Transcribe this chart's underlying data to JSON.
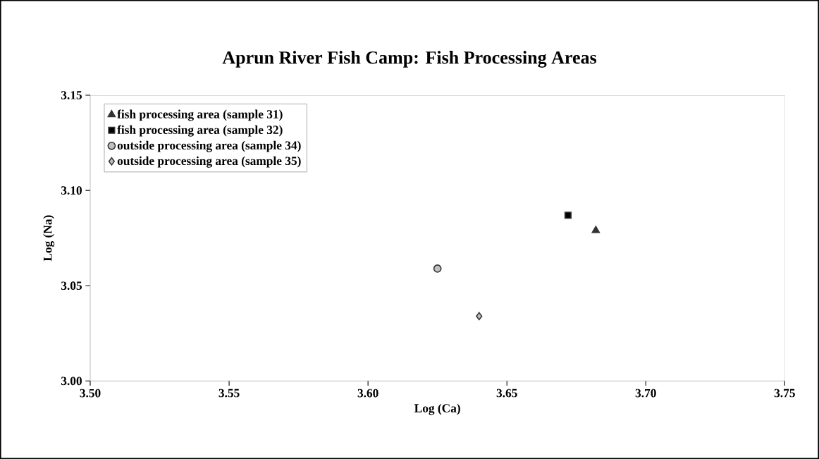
{
  "chart_data": {
    "type": "scatter",
    "title": "Aprun River Fish Camp: Fish Processing Areas",
    "xlabel": "Log (Ca)",
    "ylabel": "Log  (Na)",
    "xlim": [
      3.5,
      3.75
    ],
    "xticks": [
      {
        "value": 3.5,
        "label": "3.50"
      },
      {
        "value": 3.55,
        "label": "3.55"
      },
      {
        "value": 3.6,
        "label": "3.60"
      },
      {
        "value": 3.65,
        "label": "3.65"
      },
      {
        "value": 3.7,
        "label": "3.70"
      },
      {
        "value": 3.75,
        "label": "3.75"
      }
    ],
    "ylim": [
      3.0,
      3.15
    ],
    "yticks": [
      {
        "value": 3.0,
        "label": "3.00"
      },
      {
        "value": 3.05,
        "label": "3.05"
      },
      {
        "value": 3.1,
        "label": "3.10"
      },
      {
        "value": 3.15,
        "label": "3.15"
      }
    ],
    "grid": false,
    "legend": "top left",
    "series": [
      {
        "name": "fish processing area (sample 31)",
        "color": "#333333",
        "marker": "triangle",
        "x": [
          3.682
        ],
        "values": [
          3.079
        ]
      },
      {
        "name": "fish processing area (sample 32)",
        "color": "#000000",
        "marker": "square",
        "x": [
          3.672
        ],
        "values": [
          3.087
        ]
      },
      {
        "name": "outside processing area (sample 34)",
        "color": "#c0c0c0",
        "marker": "circle",
        "x": [
          3.625
        ],
        "values": [
          3.059
        ]
      },
      {
        "name": "outside processing area (sample 35)",
        "color": "#c0c0c0",
        "marker": "diamond",
        "x": [
          3.64
        ],
        "values": [
          3.034
        ]
      }
    ]
  }
}
